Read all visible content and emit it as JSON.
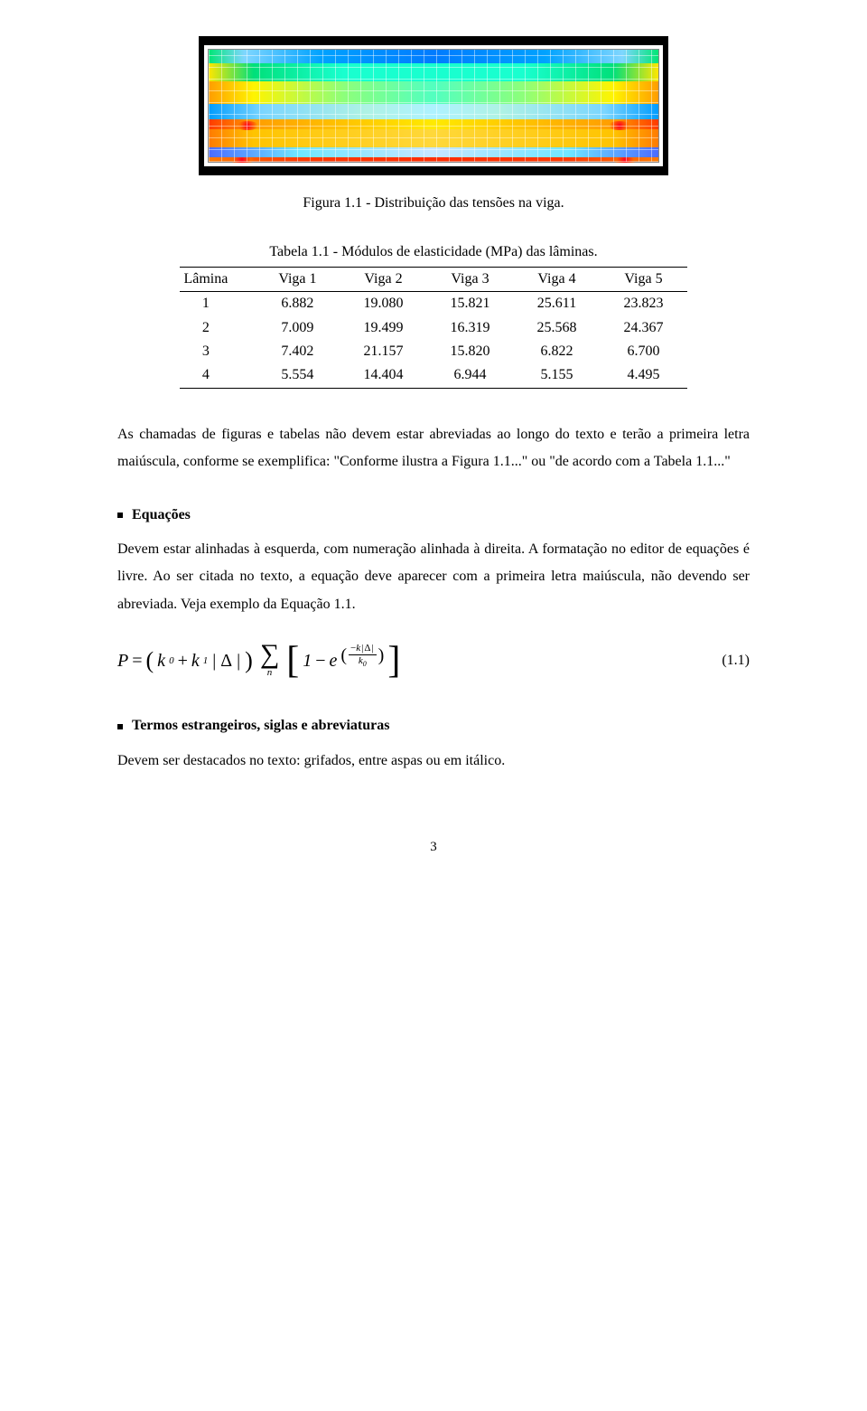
{
  "figure": {
    "caption": "Figura 1.1 - Distribuição das tensões na viga.",
    "colorbands": [
      "#007bff",
      "#19ffcf",
      "#8dff7a",
      "#aef2ff",
      "#ffea00",
      "#ffd83a",
      "#c7e6ff",
      "#ff2d00"
    ]
  },
  "table": {
    "caption": "Tabela 1.1 - Módulos de elasticidade (MPa) das lâminas.",
    "columns": [
      "Lâmina",
      "Viga 1",
      "Viga 2",
      "Viga 3",
      "Viga 4",
      "Viga 5"
    ],
    "rows": [
      [
        "1",
        "6.882",
        "19.080",
        "15.821",
        "25.611",
        "23.823"
      ],
      [
        "2",
        "7.009",
        "19.499",
        "16.319",
        "25.568",
        "24.367"
      ],
      [
        "3",
        "7.402",
        "21.157",
        "15.820",
        "6.822",
        "6.700"
      ],
      [
        "4",
        "5.554",
        "14.404",
        "6.944",
        "5.155",
        "4.495"
      ]
    ]
  },
  "para1": "As chamadas de figuras e tabelas não devem estar abreviadas ao longo do texto e terão a primeira letra maiúscula, conforme se exemplifica: \"Conforme ilustra a Figura 1.1...\" ou \"de acordo com a Tabela 1.1...\"",
  "sections": {
    "equacoes": {
      "title": "Equações",
      "body": "Devem estar alinhadas à esquerda, com numeração alinhada à direita. A formatação no editor de equações é livre. Ao ser citada no texto, a equação deve aparecer com a primeira letra maiúscula, não devendo ser abreviada. Veja exemplo da Equação 1.1."
    },
    "termos": {
      "title": "Termos estrangeiros, siglas e abreviaturas",
      "body": "Devem ser destacados no texto: grifados, entre aspas ou em itálico."
    }
  },
  "equation": {
    "lhs_P": "P",
    "eq_sign": "=",
    "k0": "k",
    "k0_sub": "0",
    "plus": "+",
    "k1": "k",
    "k1_sub": "1",
    "delta": "Δ",
    "sum_idx": "n",
    "one": "1",
    "minus": "−",
    "e": "e",
    "exp_minus": "−",
    "exp_k": "k",
    "exp_num_delta": "Δ",
    "exp_den_k": "k",
    "exp_den_sub": "0",
    "number": "(1.1)"
  },
  "page_number": "3"
}
